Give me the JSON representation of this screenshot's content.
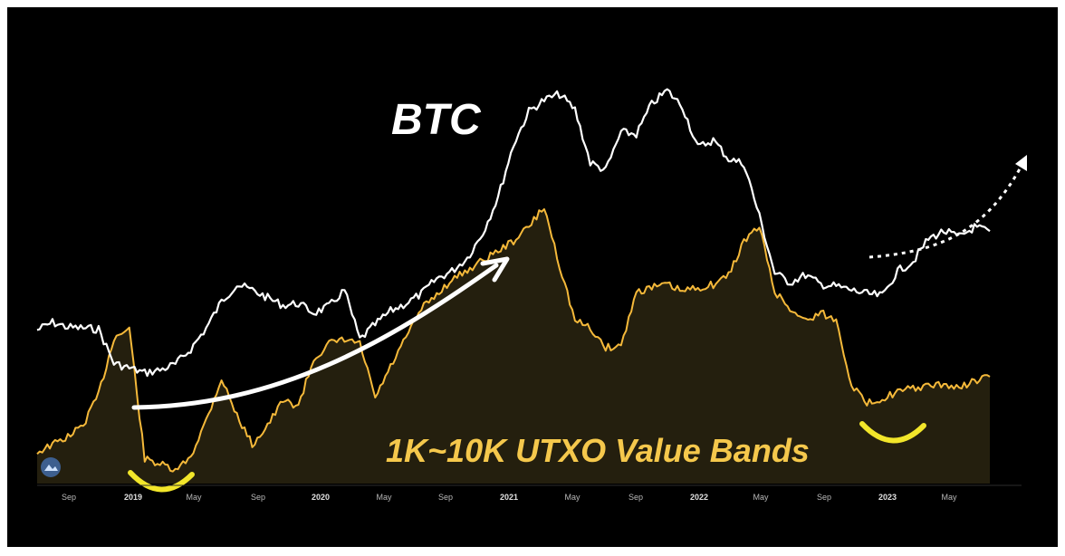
{
  "chart_data": {
    "type": "line",
    "title": "",
    "annotations": [
      "BTC",
      "1K~10K UTXO Value Bands"
    ],
    "x_ticks": [
      "Sep",
      "2019",
      "May",
      "Sep",
      "2020",
      "May",
      "Sep",
      "2021",
      "May",
      "Sep",
      "2022",
      "May",
      "Sep",
      "2023",
      "May"
    ],
    "x_range": [
      "2018-06",
      "2023-08"
    ],
    "y_axis_visible": false,
    "grid": false,
    "series": [
      {
        "name": "BTC",
        "color": "#ffffff",
        "x": [
          "2018-06",
          "2018-07",
          "2018-08",
          "2018-09",
          "2018-10",
          "2018-11",
          "2018-12",
          "2019-01",
          "2019-02",
          "2019-03",
          "2019-04",
          "2019-05",
          "2019-06",
          "2019-07",
          "2019-08",
          "2019-09",
          "2019-10",
          "2019-11",
          "2019-12",
          "2020-01",
          "2020-02",
          "2020-03",
          "2020-04",
          "2020-05",
          "2020-06",
          "2020-07",
          "2020-08",
          "2020-09",
          "2020-10",
          "2020-11",
          "2020-12",
          "2021-01",
          "2021-02",
          "2021-03",
          "2021-04",
          "2021-05",
          "2021-06",
          "2021-07",
          "2021-08",
          "2021-09",
          "2021-10",
          "2021-11",
          "2021-12",
          "2022-01",
          "2022-02",
          "2022-03",
          "2022-04",
          "2022-05",
          "2022-06",
          "2022-07",
          "2022-08",
          "2022-09",
          "2022-10",
          "2022-11",
          "2022-12",
          "2023-01",
          "2023-02",
          "2023-03",
          "2023-04",
          "2023-05",
          "2023-06",
          "2023-07",
          "2023-08"
        ],
        "values": [
          70,
          78,
          73,
          72,
          71,
          35,
          30,
          25,
          28,
          34,
          50,
          72,
          100,
          118,
          112,
          104,
          96,
          98,
          88,
          95,
          112,
          60,
          76,
          90,
          98,
          108,
          124,
          132,
          146,
          172,
          210,
          265,
          300,
          312,
          318,
          302,
          246,
          238,
          278,
          276,
          308,
          322,
          305,
          262,
          270,
          250,
          245,
          190,
          130,
          120,
          128,
          118,
          116,
          112,
          108,
          106,
          132,
          142,
          166,
          174,
          168,
          178,
          174
        ]
      },
      {
        "name": "1K~10K UTXO Value Bands",
        "color": "#f5b93a",
        "x": [
          "2018-06",
          "2018-07",
          "2018-08",
          "2018-09",
          "2018-10",
          "2018-11",
          "2018-12",
          "2019-01",
          "2019-02",
          "2019-03",
          "2019-04",
          "2019-05",
          "2019-06",
          "2019-07",
          "2019-08",
          "2019-09",
          "2019-10",
          "2019-11",
          "2019-12",
          "2020-01",
          "2020-02",
          "2020-03",
          "2020-04",
          "2020-05",
          "2020-06",
          "2020-07",
          "2020-08",
          "2020-09",
          "2020-10",
          "2020-11",
          "2020-12",
          "2021-01",
          "2021-02",
          "2021-03",
          "2021-04",
          "2021-05",
          "2021-06",
          "2021-07",
          "2021-08",
          "2021-09",
          "2021-10",
          "2021-11",
          "2021-12",
          "2022-01",
          "2022-02",
          "2022-03",
          "2022-04",
          "2022-05",
          "2022-06",
          "2022-07",
          "2022-08",
          "2022-09",
          "2022-10",
          "2022-11",
          "2022-12",
          "2023-01",
          "2023-02",
          "2023-03",
          "2023-04",
          "2023-05",
          "2023-06",
          "2023-07",
          "2023-08"
        ],
        "values": [
          22,
          30,
          38,
          50,
          82,
          140,
          150,
          15,
          10,
          2,
          18,
          55,
          98,
          60,
          30,
          50,
          75,
          70,
          118,
          134,
          138,
          134,
          78,
          110,
          140,
          170,
          185,
          200,
          210,
          220,
          230,
          240,
          255,
          275,
          215,
          158,
          150,
          130,
          132,
          188,
          192,
          195,
          188,
          192,
          195,
          205,
          240,
          255,
          188,
          170,
          158,
          166,
          158,
          92,
          72,
          78,
          84,
          88,
          90,
          92,
          88,
          96,
          100
        ]
      }
    ]
  }
}
